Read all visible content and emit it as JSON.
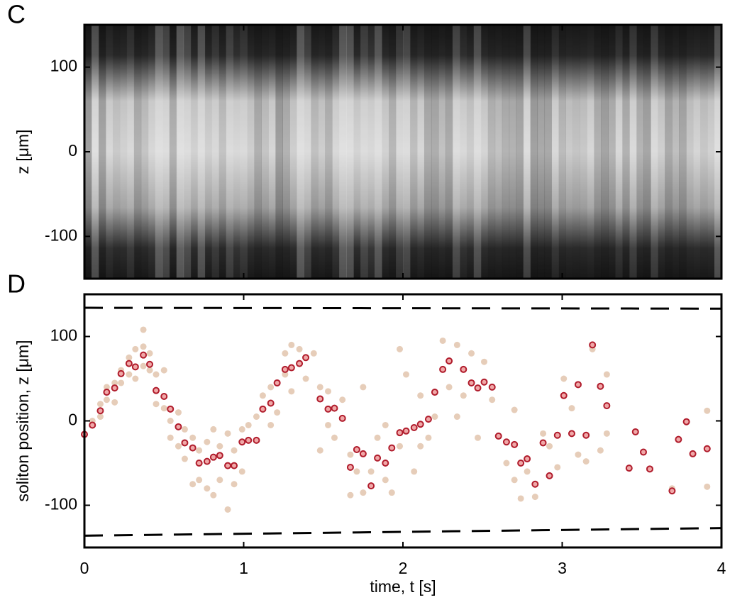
{
  "chart_data": [
    {
      "type": "heatmap",
      "panel_label": "C",
      "ylabel": "z [μm]",
      "xlim": [
        0,
        4
      ],
      "ylim": [
        -150,
        150
      ],
      "yticks": [
        -100,
        0,
        100
      ],
      "colormap": "gray"
    },
    {
      "type": "scatter",
      "panel_label": "D",
      "ylabel": "soliton position, z [μm]",
      "xlabel": "time, t [s]",
      "xlim": [
        0,
        4
      ],
      "ylim": [
        -150,
        150
      ],
      "xticks": [
        0,
        1,
        2,
        3,
        4
      ],
      "yticks": [
        -100,
        0,
        100
      ],
      "series": [
        {
          "color": "#e6cdb9",
          "marker": "dot",
          "x": [
            0.05,
            0.1,
            0.1,
            0.14,
            0.14,
            0.19,
            0.19,
            0.23,
            0.23,
            0.28,
            0.28,
            0.32,
            0.32,
            0.37,
            0.37,
            0.37,
            0.41,
            0.41,
            0.45,
            0.45,
            0.5,
            0.5,
            0.54,
            0.54,
            0.59,
            0.59,
            0.63,
            0.63,
            0.68,
            0.68,
            0.72,
            0.72,
            0.77,
            0.77,
            0.81,
            0.81,
            0.85,
            0.85,
            0.9,
            0.9,
            0.94,
            0.94,
            0.99,
            0.99,
            1.03,
            1.08,
            1.12,
            1.17,
            1.17,
            1.21,
            1.26,
            1.26,
            1.3,
            1.3,
            1.35,
            1.39,
            1.44,
            1.48,
            1.48,
            1.53,
            1.53,
            1.57,
            1.62,
            1.67,
            1.67,
            1.71,
            1.75,
            1.75,
            1.8,
            1.84,
            1.89,
            1.89,
            1.93,
            1.98,
            2.02,
            1.98,
            2.07,
            2.11,
            2.11,
            2.16,
            2.2,
            2.25,
            2.29,
            2.34,
            2.34,
            2.38,
            2.43,
            2.47,
            2.51,
            2.56,
            2.65,
            2.7,
            2.74,
            2.78,
            2.83,
            2.88,
            2.92,
            2.97,
            3.01,
            3.06,
            3.1,
            3.15,
            3.19,
            3.24,
            3.28,
            3.28,
            3.69,
            3.91,
            3.91,
            2.7
          ],
          "values": [
            0,
            20,
            5,
            40,
            25,
            45,
            22,
            60,
            45,
            75,
            55,
            85,
            50,
            108,
            88,
            65,
            80,
            60,
            55,
            20,
            60,
            15,
            0,
            -20,
            10,
            -30,
            -10,
            -45,
            -20,
            -75,
            -35,
            -70,
            -25,
            -80,
            -10,
            -88,
            -30,
            -70,
            -15,
            -105,
            -35,
            -75,
            -10,
            -60,
            -5,
            5,
            30,
            -5,
            40,
            10,
            55,
            80,
            35,
            90,
            85,
            50,
            80,
            40,
            -35,
            -5,
            35,
            -20,
            25,
            -88,
            -40,
            -60,
            -85,
            40,
            -60,
            -20,
            -70,
            -5,
            -85,
            -30,
            55,
            85,
            -60,
            -30,
            30,
            -20,
            5,
            95,
            40,
            90,
            5,
            30,
            80,
            -20,
            70,
            25,
            -50,
            -70,
            -92,
            -60,
            -90,
            -15,
            -30,
            -55,
            50,
            15,
            -40,
            -48,
            85,
            -35,
            55,
            -15,
            -80,
            -78,
            12,
            13
          ]
        },
        {
          "color": "#b01c2c",
          "marker": "ring",
          "x": [
            0,
            0.05,
            0.1,
            0.14,
            0.19,
            0.23,
            0.28,
            0.32,
            0.37,
            0.41,
            0.45,
            0.5,
            0.54,
            0.59,
            0.63,
            0.68,
            0.72,
            0.77,
            0.81,
            0.85,
            0.9,
            0.94,
            0.99,
            1.03,
            1.08,
            1.12,
            1.17,
            1.21,
            1.26,
            1.3,
            1.35,
            1.39,
            1.48,
            1.53,
            1.57,
            1.62,
            1.67,
            1.71,
            1.75,
            1.8,
            1.84,
            1.89,
            1.93,
            1.98,
            2.02,
            2.07,
            2.11,
            2.16,
            2.2,
            2.25,
            2.29,
            2.38,
            2.43,
            2.47,
            2.51,
            2.56,
            2.6,
            2.65,
            2.7,
            2.74,
            2.78,
            2.83,
            2.88,
            2.92,
            2.97,
            3.01,
            3.06,
            3.1,
            3.15,
            3.19,
            3.24,
            3.28,
            3.42,
            3.46,
            3.51,
            3.55,
            3.69,
            3.73,
            3.78,
            3.82,
            3.91
          ],
          "values": [
            -16,
            -5,
            12,
            34,
            39,
            56,
            68,
            64,
            78,
            67,
            36,
            29,
            14,
            -7,
            -26,
            -32,
            -50,
            -48,
            -43,
            -41,
            -53,
            -53,
            -25,
            -23,
            -23,
            14,
            21,
            45,
            61,
            63,
            68,
            75,
            26,
            14,
            15,
            3,
            -55,
            -34,
            -39,
            -77,
            -44,
            -50,
            -32,
            -14,
            -12,
            -8,
            -4,
            2,
            34,
            61,
            71,
            61,
            45,
            39,
            46,
            40,
            -18,
            -25,
            -28,
            -50,
            -45,
            -75,
            -26,
            -65,
            -17,
            30,
            -15,
            43,
            -17,
            90,
            41,
            18,
            -56,
            -13,
            -37,
            -57,
            -83,
            -22,
            -1,
            -39,
            -33
          ]
        }
      ],
      "boundaries": [
        {
          "x": [
            0,
            4
          ],
          "values": [
            134,
            133
          ]
        },
        {
          "x": [
            0,
            4
          ],
          "values": [
            -136,
            -127
          ]
        }
      ]
    }
  ]
}
